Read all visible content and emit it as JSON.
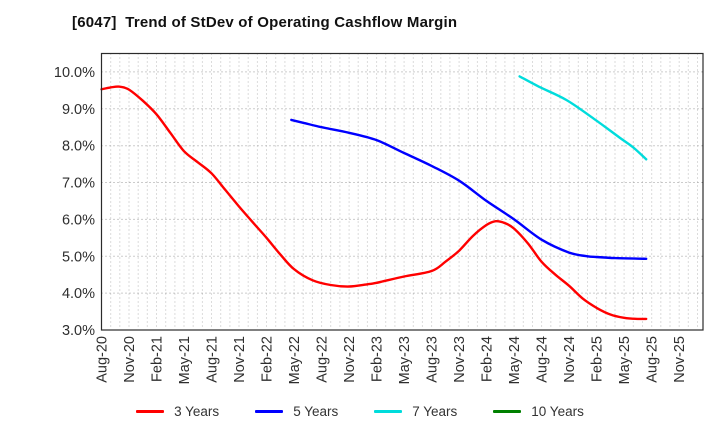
{
  "header": {
    "title": "[6047]  Trend of StDev of Operating Cashflow Margin"
  },
  "chart_data": {
    "type": "line",
    "title": "[6047]  Trend of StDev of Operating Cashflow Margin",
    "xlabel": "",
    "ylabel": "",
    "x_tick_labels": [
      "Aug-20",
      "Nov-20",
      "Feb-21",
      "May-21",
      "Aug-21",
      "Nov-21",
      "Feb-22",
      "May-22",
      "Aug-22",
      "Nov-22",
      "Feb-23",
      "May-23",
      "Aug-23",
      "Nov-23",
      "Feb-24",
      "May-24",
      "Aug-24",
      "Nov-24",
      "Feb-25",
      "May-25",
      "Aug-25",
      "Nov-25"
    ],
    "x_unit": "months since Aug-2020, ticks every 3 months",
    "xlim_months": [
      0,
      65.6
    ],
    "x_tick_interval_months": 3,
    "ylim": [
      3.0,
      10.5
    ],
    "y_tick_labels_top_to_bottom": [
      "10.0%",
      "9.0%",
      "8.0%",
      "7.0%",
      "6.0%",
      "5.0%",
      "4.0%",
      "3.0%"
    ],
    "grid": {
      "vertical": "monthly, dotted light gray",
      "horizontal": "every 1%, dotted gray"
    },
    "legend_position": "bottom-center",
    "series": [
      {
        "name": "3 Years",
        "color": "#ff0000",
        "points": [
          [
            0,
            9.53
          ],
          [
            1,
            9.58
          ],
          [
            2,
            9.6
          ],
          [
            3,
            9.52
          ],
          [
            4.5,
            9.22
          ],
          [
            6,
            8.85
          ],
          [
            7.5,
            8.35
          ],
          [
            9,
            7.85
          ],
          [
            10.5,
            7.55
          ],
          [
            12,
            7.25
          ],
          [
            13.5,
            6.8
          ],
          [
            15,
            6.35
          ],
          [
            16.5,
            5.92
          ],
          [
            18,
            5.5
          ],
          [
            19.5,
            5.05
          ],
          [
            21,
            4.65
          ],
          [
            23,
            4.35
          ],
          [
            25,
            4.22
          ],
          [
            27,
            4.18
          ],
          [
            29,
            4.24
          ],
          [
            30,
            4.28
          ],
          [
            33,
            4.45
          ],
          [
            36,
            4.6
          ],
          [
            37.5,
            4.85
          ],
          [
            39,
            5.15
          ],
          [
            40.5,
            5.55
          ],
          [
            42,
            5.85
          ],
          [
            43,
            5.95
          ],
          [
            44,
            5.9
          ],
          [
            45,
            5.75
          ],
          [
            46.5,
            5.35
          ],
          [
            48,
            4.85
          ],
          [
            49.5,
            4.5
          ],
          [
            51,
            4.2
          ],
          [
            52.5,
            3.85
          ],
          [
            54,
            3.6
          ],
          [
            55.5,
            3.42
          ],
          [
            57,
            3.33
          ],
          [
            58.5,
            3.3
          ],
          [
            59.4,
            3.3
          ]
        ]
      },
      {
        "name": "5 Years",
        "color": "#0000ff",
        "points": [
          [
            20.7,
            8.7
          ],
          [
            22,
            8.62
          ],
          [
            24,
            8.5
          ],
          [
            27,
            8.35
          ],
          [
            30,
            8.15
          ],
          [
            33,
            7.8
          ],
          [
            36,
            7.45
          ],
          [
            39,
            7.05
          ],
          [
            42,
            6.5
          ],
          [
            45,
            6.0
          ],
          [
            48,
            5.45
          ],
          [
            51,
            5.1
          ],
          [
            53,
            5.0
          ],
          [
            54,
            4.98
          ],
          [
            56,
            4.95
          ],
          [
            59.4,
            4.93
          ]
        ]
      },
      {
        "name": "7 Years",
        "color": "#00dcdc",
        "points": [
          [
            45.6,
            9.88
          ],
          [
            47.7,
            9.6
          ],
          [
            50.7,
            9.24
          ],
          [
            53.7,
            8.73
          ],
          [
            56.5,
            8.22
          ],
          [
            58,
            7.95
          ],
          [
            59.4,
            7.63
          ]
        ]
      },
      {
        "name": "10 Years",
        "color": "#008000",
        "points": []
      }
    ]
  }
}
